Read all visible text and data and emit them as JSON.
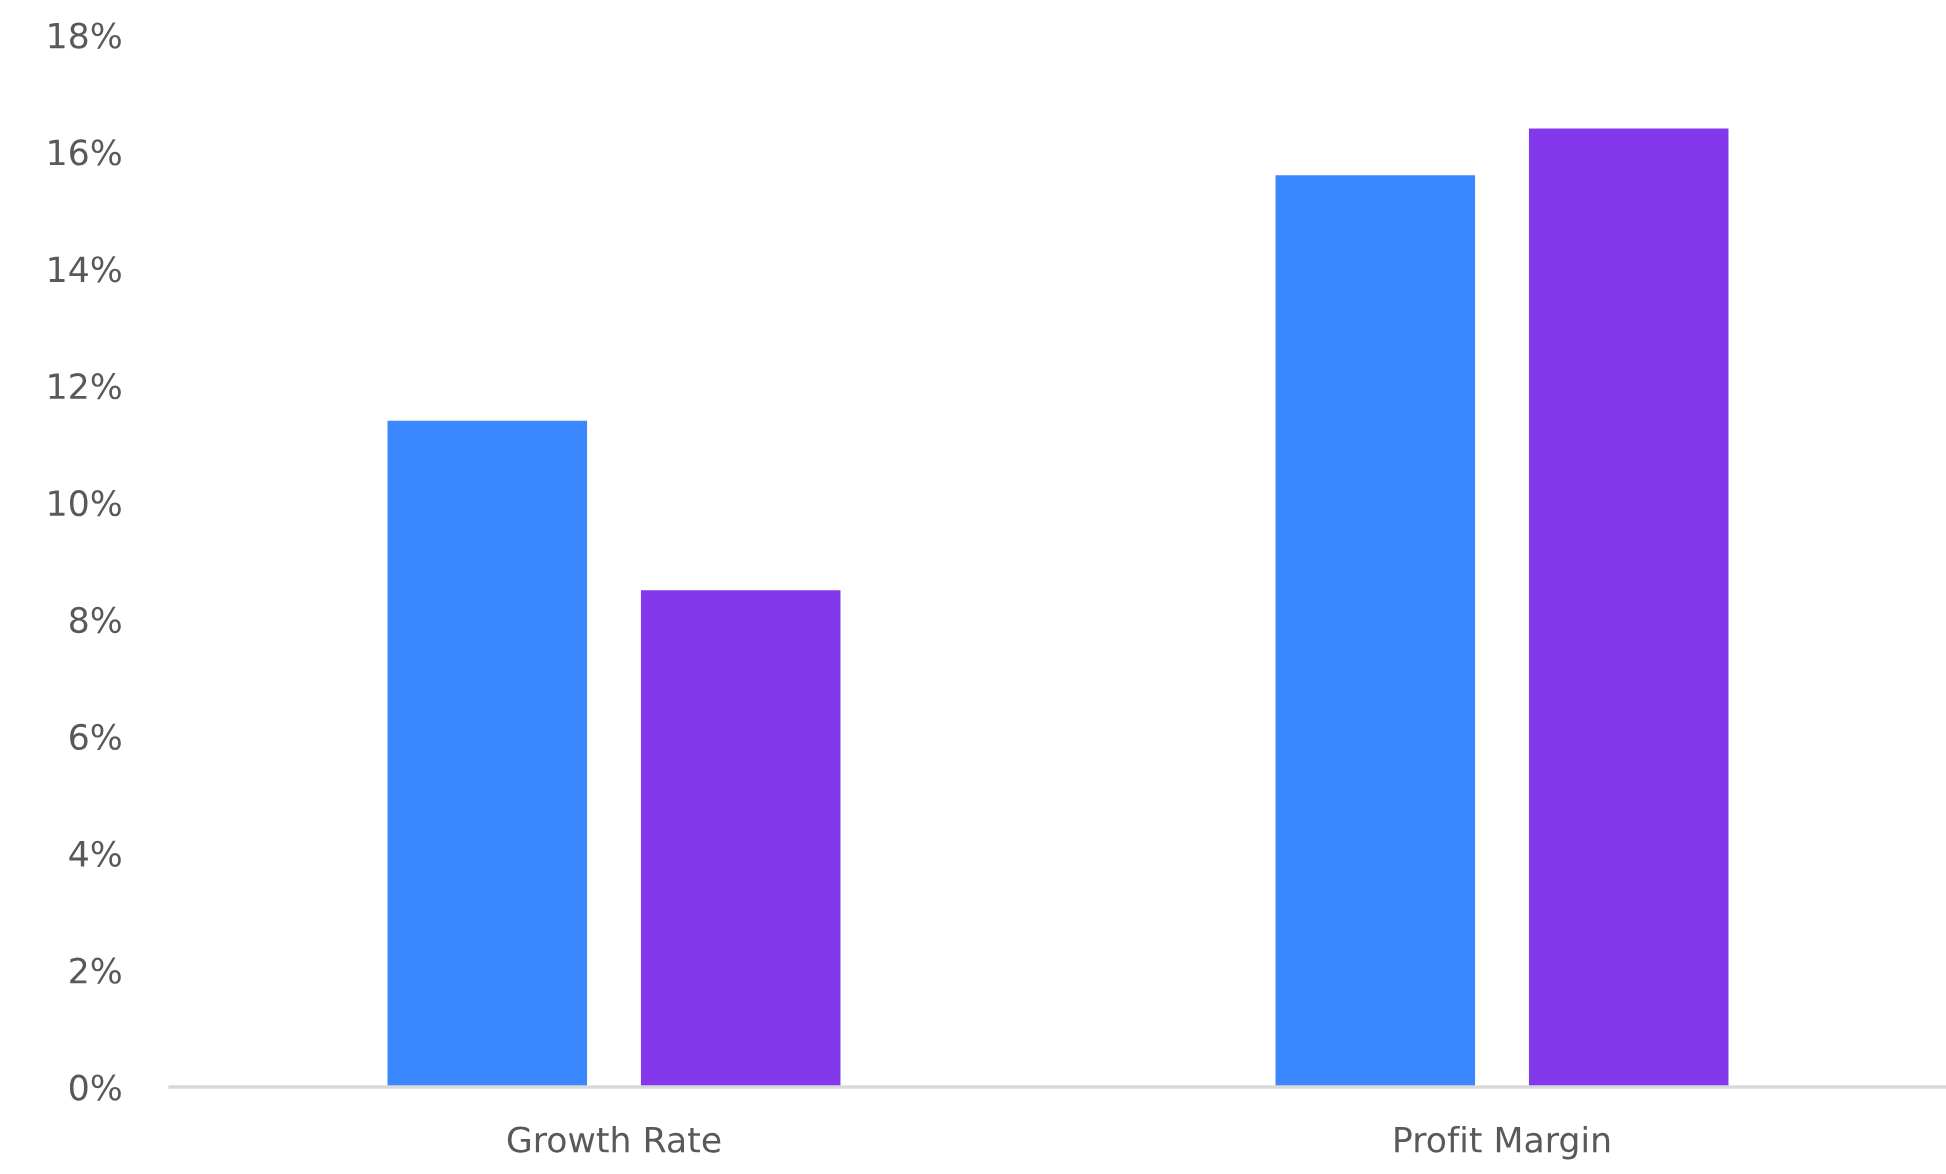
{
  "chart_data": {
    "type": "bar",
    "categories": [
      "Growth Rate",
      "Profit Margin"
    ],
    "series": [
      {
        "color": "#3b87ff",
        "values": [
          11.4,
          15.6
        ]
      },
      {
        "color": "#8338ec",
        "values": [
          8.5,
          16.4
        ]
      }
    ],
    "ylim": [
      0,
      18
    ],
    "yticks": [
      {
        "value": 0,
        "label": "0%"
      },
      {
        "value": 2,
        "label": "2%"
      },
      {
        "value": 4,
        "label": "4%"
      },
      {
        "value": 6,
        "label": "6%"
      },
      {
        "value": 8,
        "label": "8%"
      },
      {
        "value": 10,
        "label": "10%"
      },
      {
        "value": 12,
        "label": "12%"
      },
      {
        "value": 14,
        "label": "14%"
      },
      {
        "value": 16,
        "label": "16%"
      },
      {
        "value": 18,
        "label": "18%"
      }
    ]
  }
}
